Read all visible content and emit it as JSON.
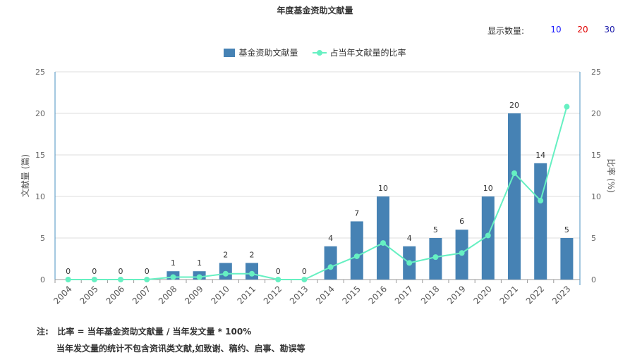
{
  "page": {
    "title": "年度基金资助文献量",
    "count_label": "显示数量:",
    "count_options": [
      {
        "label": "10",
        "color": "#1a1aff"
      },
      {
        "label": "20",
        "color": "#e00000"
      },
      {
        "label": "30",
        "color": "#1a1aaa"
      }
    ],
    "note_label": "注:",
    "note_line1": "比率 = 当年基金资助文献量 / 当年发文量 * 100%",
    "note_line2": "当年发文量的统计不包含资讯类文献,如致谢、稿约、启事、勘误等"
  },
  "chart_data": {
    "type": "bar",
    "categories": [
      "2004",
      "2005",
      "2006",
      "2007",
      "2008",
      "2009",
      "2010",
      "2011",
      "2012",
      "2013",
      "2014",
      "2015",
      "2016",
      "2017",
      "2018",
      "2019",
      "2020",
      "2021",
      "2022",
      "2023"
    ],
    "series": [
      {
        "name": "基金资助文献量",
        "type": "bar",
        "color": "#4682b4",
        "axis": "left",
        "values": [
          0,
          0,
          0,
          0,
          1,
          1,
          2,
          2,
          0,
          0,
          4,
          7,
          10,
          4,
          5,
          6,
          10,
          20,
          14,
          5
        ]
      },
      {
        "name": "占当年文献量的比率",
        "type": "line",
        "color": "#66f0c2",
        "axis": "right",
        "values": [
          0,
          0,
          0,
          0,
          0.3,
          0.3,
          0.7,
          0.7,
          0,
          0,
          1.5,
          2.8,
          4.4,
          2.0,
          2.7,
          3.2,
          5.3,
          12.8,
          9.5,
          20.8
        ]
      }
    ],
    "ylabel_left": "文献量 (篇)",
    "ylabel_right": "比率 (%)",
    "ylim_left": [
      0,
      25
    ],
    "ylim_right": [
      0,
      25
    ],
    "yticks_left": [
      "0",
      "5",
      "10",
      "15",
      "20",
      "25"
    ],
    "yticks_right": [
      "0",
      "5",
      "10",
      "15",
      "20",
      "25"
    ],
    "grid": true,
    "legend": "top-center"
  }
}
